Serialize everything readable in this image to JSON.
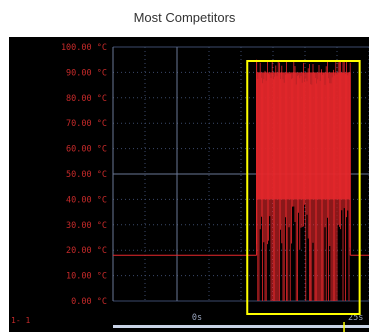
{
  "header": {
    "title": "Most Competitors"
  },
  "screen_label": "1- 1",
  "colors": {
    "background": "#000000",
    "grid": "#3b4a6b",
    "axis_text": "#c62a2a",
    "trace": "#e8282c",
    "highlight": "#ffff00",
    "cursor": "#c9d3e6"
  },
  "chart_data": {
    "type": "line",
    "title": "",
    "xlabel": "",
    "ylabel": "",
    "ylim": [
      0,
      100
    ],
    "y_ticks": [
      "100.00 °C",
      "90.00 °C",
      "80.00 °C",
      "70.00 °C",
      "60.00 °C",
      "50.00 °C",
      "40.00 °C",
      "30.00 °C",
      "20.00 °C",
      "10.00 °C",
      "0.00 °C"
    ],
    "x_ticks": [
      {
        "x": 0,
        "label": "0s"
      },
      {
        "x": 25,
        "label": "25s"
      }
    ],
    "xlim": [
      -12,
      29
    ],
    "grid": true,
    "series": [
      {
        "baseline_before": {
          "x": [
            -12,
            11
          ],
          "y": 18
        },
        "burst": {
          "x_start": 11,
          "x_end": 26,
          "peak_y": 95,
          "band_top_y": 90,
          "band_low_y": 40,
          "trough_y": 0
        },
        "baseline_after": {
          "x": [
            26,
            29
          ],
          "y": 18
        }
      }
    ],
    "highlight_region": {
      "x_start": 9.5,
      "x_end": 27.5
    }
  }
}
